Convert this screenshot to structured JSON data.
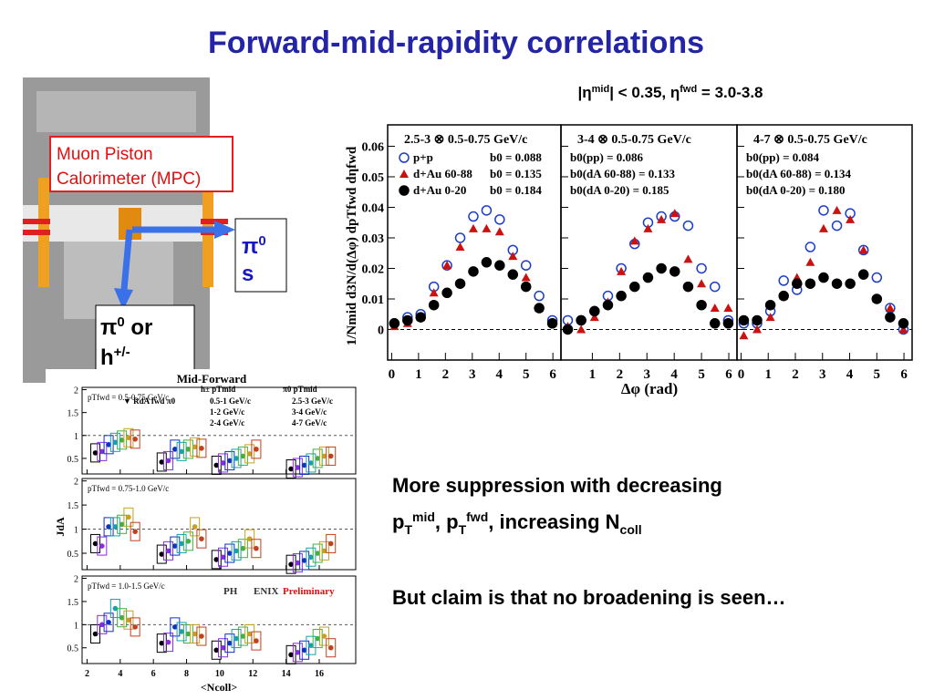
{
  "header": {
    "title": "Forward-mid-rapidity correlations"
  },
  "diagram": {
    "mpc_label": [
      "Muon Piston",
      "Calorimeter (MPC)"
    ],
    "box1": [
      "π",
      "0",
      "s"
    ],
    "box2": [
      "π",
      "0",
      " or",
      "h",
      "+/-"
    ]
  },
  "cut_label": [
    "|η",
    "mid",
    "| < 0.35, η",
    "fwd",
    " = 3.0-3.8"
  ],
  "text": {
    "line1": "More suppression with decreasing",
    "line2": [
      "p",
      "T",
      "mid",
      ", p",
      "T",
      "fwd",
      ", increasing N",
      "coll"
    ],
    "line3": "But claim is that no broadening is seen…"
  },
  "chart_data": [
    {
      "type": "scatter",
      "x_label": "Δφ (rad)",
      "y_label": "1/Nmid d3N/d(Δφ) dpTfwd dηfwd",
      "xlim": [
        -0.15,
        6.3
      ],
      "ylim": [
        -0.01,
        0.067
      ],
      "yticks": [
        0,
        0.01,
        0.02,
        0.03,
        0.04,
        0.05,
        0.06
      ],
      "reference_line": 0,
      "x": [
        0.1,
        0.59,
        1.08,
        1.57,
        2.06,
        2.55,
        3.04,
        3.53,
        4.02,
        4.51,
        5.0,
        5.49,
        5.98
      ],
      "series": [
        {
          "name": "p+p",
          "color": "#1a3cc8",
          "marker": "open-circle"
        },
        {
          "name": "d+Au 60-88",
          "color": "#cc1111",
          "marker": "triangle"
        },
        {
          "name": "d+Au 0-20",
          "color": "#000000",
          "marker": "circle"
        }
      ],
      "panels": [
        {
          "title": "2.5-3 ⊗ 0.5-0.75 GeV/c",
          "xticks": [
            0,
            1,
            2,
            3,
            4,
            5,
            6
          ],
          "labels": [
            "b0 = 0.088",
            "b0 = 0.135",
            "b0 = 0.184"
          ],
          "values": [
            [
              0.002,
              0.004,
              0.005,
              0.014,
              0.021,
              0.03,
              0.037,
              0.039,
              0.036,
              0.026,
              0.021,
              0.011,
              0.003
            ],
            [
              0.001,
              0.002,
              0.004,
              0.012,
              0.021,
              0.027,
              0.033,
              0.033,
              0.032,
              0.024,
              0.017,
              0.007,
              0.002
            ],
            [
              0.002,
              0.003,
              0.004,
              0.008,
              0.012,
              0.015,
              0.019,
              0.022,
              0.021,
              0.018,
              0.014,
              0.007,
              0.002
            ]
          ]
        },
        {
          "title": "3-4 ⊗ 0.5-0.75 GeV/c",
          "xticks": [
            1,
            2,
            3,
            4,
            5,
            6
          ],
          "labels": [
            "b0(pp) = 0.086",
            "b0(dA 60-88) = 0.133",
            "b0(dA 0-20) = 0.185"
          ],
          "values": [
            [
              0.003,
              0.003,
              0.006,
              0.011,
              0.02,
              0.028,
              0.035,
              0.037,
              0.037,
              0.034,
              0.02,
              0.014,
              0.003
            ],
            [
              0.001,
              0.0,
              0.004,
              0.009,
              0.019,
              0.029,
              0.033,
              0.036,
              0.038,
              0.023,
              0.015,
              0.007,
              0.007
            ],
            [
              0.0,
              0.003,
              0.006,
              0.008,
              0.011,
              0.014,
              0.017,
              0.02,
              0.019,
              0.014,
              0.008,
              0.002,
              0.002
            ]
          ]
        },
        {
          "title": "4-7 ⊗ 0.5-0.75 GeV/c",
          "xticks": [
            0,
            1,
            2,
            3,
            4,
            5,
            6
          ],
          "labels": [
            "b0(pp) = 0.084",
            "b0(dA 60-88) = 0.134",
            "b0(dA 0-20) = 0.180"
          ],
          "values": [
            [
              0.002,
              0.002,
              0.006,
              0.016,
              0.013,
              0.027,
              0.039,
              0.034,
              0.038,
              0.026,
              0.017,
              0.007,
              0.0
            ],
            [
              -0.002,
              0.0,
              0.004,
              0.011,
              0.017,
              0.022,
              0.033,
              0.039,
              0.036,
              0.026,
              0.01,
              0.007,
              0.0
            ],
            [
              0.003,
              0.003,
              0.008,
              0.011,
              0.015,
              0.015,
              0.017,
              0.015,
              0.015,
              0.018,
              0.01,
              0.004,
              0.002
            ]
          ]
        }
      ]
    },
    {
      "type": "scatter",
      "title": "Mid-Forward",
      "x_label": "<Ncoll>",
      "y_label": "JdA",
      "xlim": [
        1.7,
        18.2
      ],
      "ylim": [
        0.16,
        2.05
      ],
      "xticks": [
        2,
        4,
        6,
        8,
        10,
        12,
        14,
        16
      ],
      "yticks": [
        0.5,
        1,
        1.5,
        2
      ],
      "reference_line": 1,
      "legend": [
        "▼ RdA fwd π0",
        "h±  pTmid",
        "π0  pTmid",
        "0.5-1 GeV/c",
        "1-2 GeV/c",
        "2-4 GeV/c",
        "2.5-3 GeV/c",
        "3-4 GeV/c",
        "4-7 GeV/c"
      ],
      "logo": [
        "PH",
        "ENIX",
        "Preliminary"
      ],
      "colors": [
        "#000000",
        "#8a2be2",
        "#1030c0",
        "#16a0b0",
        "#40b040",
        "#c8a020",
        "#c04020"
      ],
      "x": [
        2.5,
        2.9,
        3.3,
        3.7,
        4.1,
        4.5,
        4.9,
        6.5,
        6.9,
        7.3,
        7.7,
        8.1,
        8.5,
        8.9,
        9.8,
        10.2,
        10.6,
        11,
        11.4,
        11.8,
        12.2,
        14.3,
        14.7,
        15.1,
        15.5,
        15.9,
        16.3,
        16.7
      ],
      "panels": [
        {
          "label": "pTfwd = 0.5-0.75 GeV/c",
          "values": [
            0.62,
            0.65,
            0.8,
            0.85,
            0.9,
            0.95,
            0.92,
            0.42,
            0.45,
            0.7,
            0.65,
            0.7,
            0.75,
            0.72,
            0.35,
            0.4,
            0.45,
            0.5,
            0.55,
            0.6,
            0.7,
            0.27,
            0.3,
            0.35,
            0.4,
            0.5,
            0.55,
            0.55
          ]
        },
        {
          "label": "pTfwd = 0.75-1.0 GeV/c",
          "values": [
            0.7,
            0.65,
            1.05,
            1.05,
            1.1,
            1.25,
            0.95,
            0.48,
            0.55,
            0.65,
            0.7,
            0.75,
            1.05,
            0.8,
            0.37,
            0.42,
            0.5,
            0.55,
            0.6,
            0.8,
            0.6,
            0.27,
            0.3,
            0.35,
            0.42,
            0.5,
            0.55,
            0.7
          ]
        },
        {
          "label": "pTfwd = 1.0-1.5 GeV/c",
          "values": [
            0.8,
            1.0,
            1.05,
            1.35,
            1.15,
            1.1,
            0.95,
            0.6,
            0.62,
            0.95,
            0.85,
            0.8,
            0.8,
            0.75,
            0.45,
            0.5,
            0.6,
            0.7,
            0.75,
            0.8,
            0.65,
            0.35,
            0.4,
            0.45,
            0.55,
            0.7,
            0.75,
            0.5
          ]
        }
      ]
    }
  ]
}
